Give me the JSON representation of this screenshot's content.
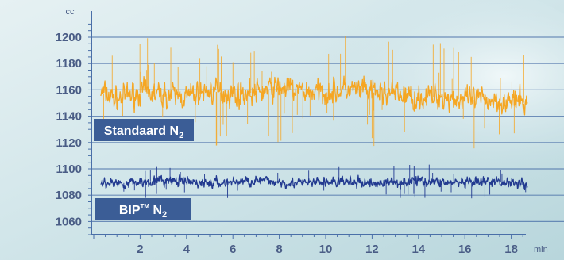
{
  "chart_data": {
    "type": "line",
    "xlabel": "min",
    "ylabel": "cc",
    "xlim": [
      0,
      19.5
    ],
    "ylim": [
      1045,
      1210
    ],
    "x_ticks": [
      "2",
      "4",
      "6",
      "8",
      "10",
      "12",
      "14",
      "16",
      "18"
    ],
    "y_ticks": [
      "1200",
      "1180",
      "1160",
      "1140",
      "1120",
      "1100",
      "1080",
      "1060"
    ],
    "grid": true,
    "series": [
      {
        "name": "Standaard N2",
        "label": {
          "main": "Standaard N",
          "sub": "2"
        },
        "x": [
          0.3,
          1,
          2,
          3,
          4,
          5,
          6,
          7,
          8,
          9,
          10,
          11,
          12,
          13,
          14,
          15,
          16,
          17,
          18,
          18.7
        ],
        "values": [
          1158,
          1153,
          1158,
          1156,
          1155,
          1159,
          1157,
          1158,
          1162,
          1159,
          1158,
          1160,
          1158,
          1157,
          1154,
          1155,
          1152,
          1153,
          1151,
          1150
        ],
        "color": "#f5a623"
      },
      {
        "name": "BIP™ N2",
        "label": {
          "main": "BIP",
          "sup": "TM",
          "main2": " N",
          "sub": "2"
        },
        "x": [
          0.3,
          1,
          2,
          3,
          4,
          5,
          6,
          7,
          8,
          9,
          10,
          11,
          12,
          13,
          14,
          15,
          16,
          17,
          18,
          18.7
        ],
        "values": [
          1090,
          1089,
          1090,
          1091,
          1090,
          1089,
          1090,
          1091,
          1090,
          1089,
          1090,
          1090,
          1089,
          1090,
          1091,
          1090,
          1089,
          1090,
          1090,
          1089
        ],
        "color": "#223a90"
      }
    ]
  },
  "colors": {
    "axis": "#4a6fa8",
    "grid": "#4a6fa8",
    "tick_text": "#4a5d86",
    "label_box": "#3b5d96"
  }
}
